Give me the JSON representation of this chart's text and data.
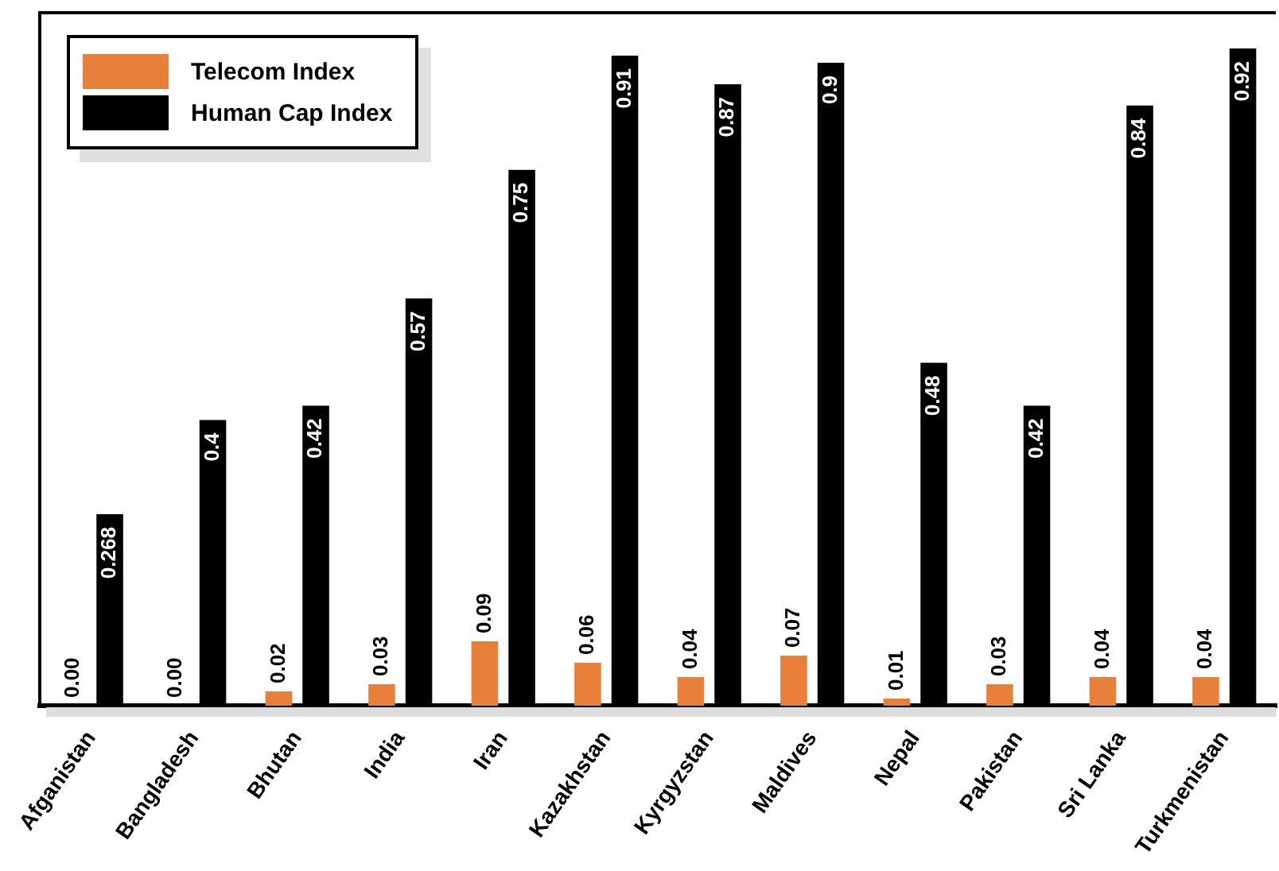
{
  "chart_data": {
    "type": "bar",
    "categories": [
      "Afganistan",
      "Bangladesh",
      "Bhutan",
      "India",
      "Iran",
      "Kazakhstan",
      "Kyrgyzstan",
      "Maldives",
      "Nepal",
      "Pakistan",
      "Sri Lanka",
      "Turkmenistan"
    ],
    "series": [
      {
        "name": "Telecom Index",
        "color": "#e8803a",
        "values": [
          0.0,
          0.0,
          0.02,
          0.03,
          0.09,
          0.06,
          0.04,
          0.07,
          0.01,
          0.03,
          0.04,
          0.04
        ],
        "value_labels": [
          "0.00",
          "0.00",
          "0.02",
          "0.03",
          "0.09",
          "0.06",
          "0.04",
          "0.07",
          "0.01",
          "0.03",
          "0.04",
          "0.04"
        ]
      },
      {
        "name": "Human Cap Index",
        "color": "#000000",
        "values": [
          0.268,
          0.4,
          0.42,
          0.57,
          0.75,
          0.91,
          0.87,
          0.9,
          0.48,
          0.42,
          0.84,
          0.92
        ],
        "value_labels": [
          "0.268",
          "0.4",
          "0.42",
          "0.57",
          "0.75",
          "0.91",
          "0.87",
          "0.9",
          "0.48",
          "0.42",
          "0.84",
          "0.92"
        ]
      }
    ],
    "ylim": [
      0,
      0.97
    ],
    "legend": "top left",
    "grid": false,
    "tick_labels": "x"
  }
}
